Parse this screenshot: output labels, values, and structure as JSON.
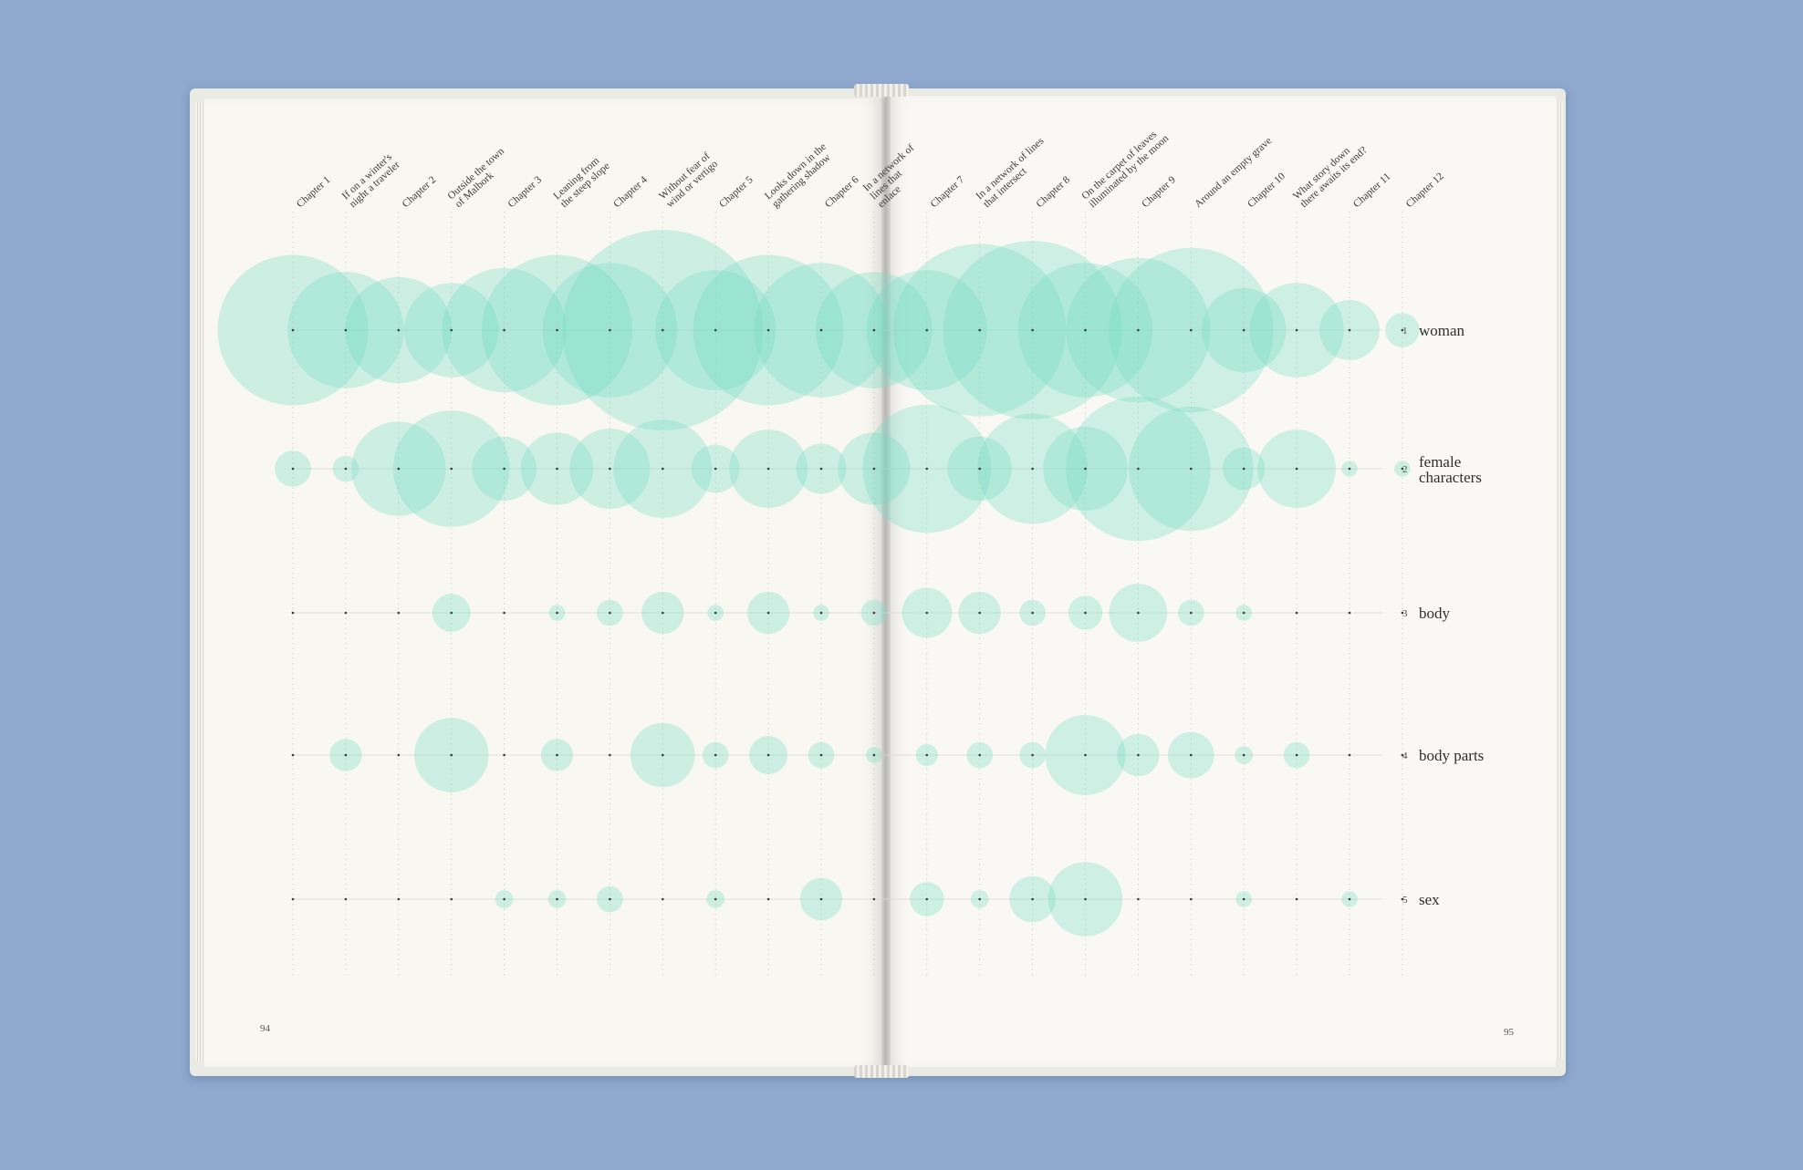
{
  "book": {
    "page_left_number": "94",
    "page_right_number": "95"
  },
  "colors": {
    "background": "#8ea9cd",
    "page": "#f8f7f2",
    "bubble": "#74dcc5",
    "text": "#3a3a36",
    "gridline": "#c9c8c1"
  },
  "chart_data": {
    "type": "bubble",
    "title": "",
    "columns": [
      {
        "label": [
          "Chapter 1"
        ]
      },
      {
        "label": [
          "If on a winter's",
          "night a traveler"
        ]
      },
      {
        "label": [
          "Chapter 2"
        ]
      },
      {
        "label": [
          "Outside the town",
          "of Malbork"
        ]
      },
      {
        "label": [
          "Chapter 3"
        ]
      },
      {
        "label": [
          "Leaning from",
          "the steep slope"
        ]
      },
      {
        "label": [
          "Chapter 4"
        ]
      },
      {
        "label": [
          "Without fear of",
          "wind or vertigo"
        ]
      },
      {
        "label": [
          "Chapter 5"
        ]
      },
      {
        "label": [
          "Looks down in the",
          "gathering shadow"
        ]
      },
      {
        "label": [
          "Chapter 6"
        ]
      },
      {
        "label": [
          "In a network of",
          "lines that",
          "enlace"
        ]
      },
      {
        "label": [
          "Chapter 7"
        ]
      },
      {
        "label": [
          "In a network of lines",
          "that intersect"
        ]
      },
      {
        "label": [
          "Chapter 8"
        ]
      },
      {
        "label": [
          "On the carpet of leaves",
          "illuminated by the moon"
        ]
      },
      {
        "label": [
          "Chapter 9"
        ]
      },
      {
        "label": [
          "Around an empty grave"
        ]
      },
      {
        "label": [
          "Chapter 10"
        ]
      },
      {
        "label": [
          "What story down",
          "there awaits its end?"
        ]
      },
      {
        "label": [
          "Chapter 11"
        ]
      },
      {
        "label": [
          "Chapter 12"
        ]
      }
    ],
    "series": [
      {
        "number": "1",
        "name": "woman",
        "values": [
          75,
          58,
          53,
          47,
          62,
          75,
          67,
          100,
          60,
          75,
          67,
          58,
          60,
          86,
          89,
          67,
          72,
          82,
          42,
          47,
          30,
          17
        ]
      },
      {
        "number": "2",
        "name": "female characters",
        "values": [
          18,
          13,
          47,
          58,
          32,
          36,
          40,
          49,
          24,
          39,
          25,
          36,
          64,
          32,
          55,
          42,
          72,
          62,
          21,
          39,
          8,
          8
        ]
      },
      {
        "number": "3",
        "name": "body",
        "values": [
          1,
          1,
          1,
          19,
          1,
          8,
          13,
          21,
          8,
          21,
          8,
          13,
          25,
          21,
          13,
          17,
          29,
          13,
          8,
          1,
          1,
          1
        ]
      },
      {
        "number": "4",
        "name": "body parts",
        "values": [
          1,
          16,
          1,
          37,
          1,
          16,
          1,
          32,
          13,
          19,
          13,
          8,
          11,
          13,
          13,
          40,
          21,
          23,
          9,
          13,
          1,
          1
        ]
      },
      {
        "number": "5",
        "name": "sex",
        "values": [
          1,
          1,
          1,
          1,
          9,
          9,
          13,
          1,
          9,
          1,
          21,
          1,
          17,
          9,
          23,
          37,
          1,
          1,
          8,
          1,
          8,
          1
        ]
      }
    ]
  }
}
